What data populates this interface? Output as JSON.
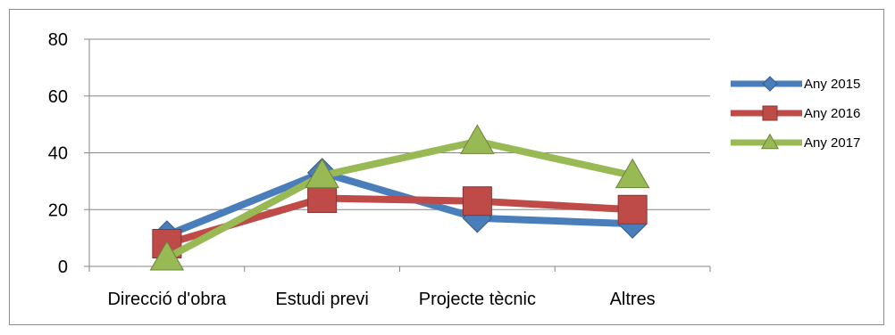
{
  "chart_data": {
    "type": "line",
    "title": "",
    "xlabel": "",
    "ylabel": "",
    "categories": [
      "Direcció d'obra",
      "Estudi previ",
      "Projecte tècnic",
      "Altres"
    ],
    "ylim": [
      0,
      80
    ],
    "yticks": [
      "0",
      "20",
      "40",
      "60",
      "80"
    ],
    "grid": "horizontal",
    "legend_position": "right",
    "series": [
      {
        "name": "Any 2015",
        "values": [
          11,
          33,
          17,
          15
        ],
        "color": "#4a7ebb",
        "marker": "diamond"
      },
      {
        "name": "Any 2016",
        "values": [
          8,
          24,
          23,
          20
        ],
        "color": "#be4b48",
        "marker": "square"
      },
      {
        "name": "Any 2017",
        "values": [
          3,
          32,
          44,
          32
        ],
        "color": "#98b954",
        "marker": "triangle"
      }
    ]
  }
}
